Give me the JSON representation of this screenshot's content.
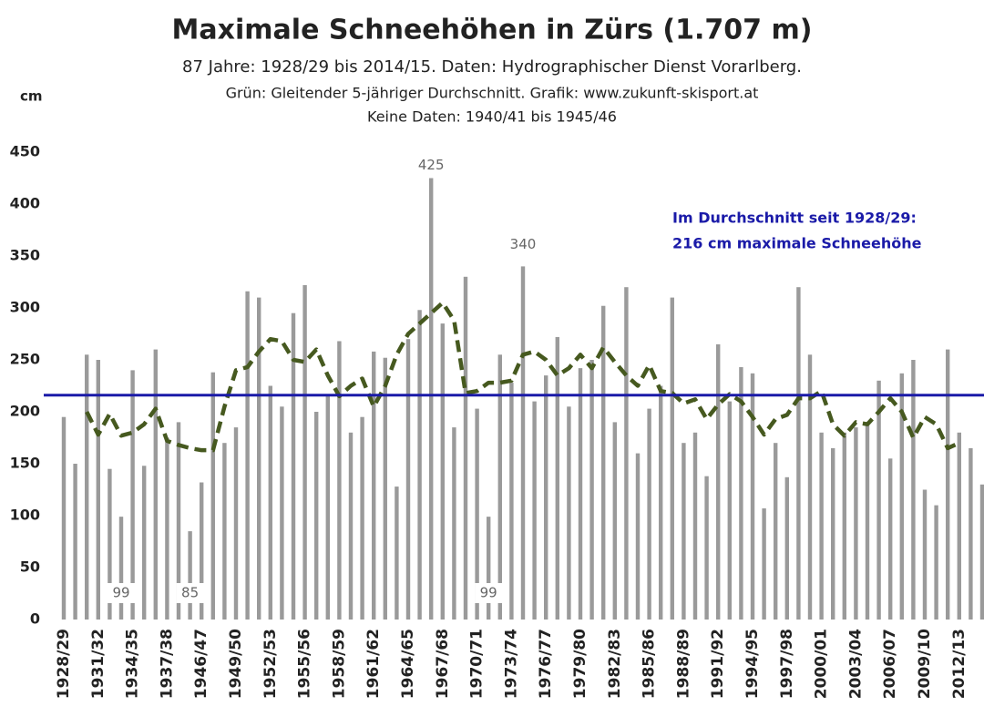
{
  "chart_data": {
    "type": "bar",
    "title": "Maximale Schneehöhen in Zürs (1.707 m)",
    "subtitles": [
      "87 Jahre: 1928/29 bis 2014/15. Daten: Hydrographischer Dienst Vorarlberg.",
      "Grün: Gleitender 5-jähriger Durchschnitt. Grafik: www.zukunft-skisport.at",
      "Keine Daten: 1940/41 bis 1945/46"
    ],
    "ylabel": "cm",
    "categories": [
      "1928/29",
      null,
      null,
      "1931/32",
      null,
      null,
      "1934/35",
      null,
      null,
      "1937/38",
      null,
      null,
      "1946/47",
      null,
      null,
      "1949/50",
      null,
      null,
      "1952/53",
      null,
      null,
      "1955/56",
      null,
      null,
      "1958/59",
      null,
      null,
      "1961/62",
      null,
      null,
      "1964/65",
      null,
      null,
      "1967/68",
      null,
      null,
      "1970/71",
      null,
      null,
      "1973/74",
      null,
      null,
      "1976/77",
      null,
      null,
      "1979/80",
      null,
      null,
      "1982/83",
      null,
      null,
      "1985/86",
      null,
      null,
      "1988/89",
      null,
      null,
      "1991/92",
      null,
      null,
      "1994/95",
      null,
      null,
      "1997/98",
      null,
      null,
      "2000/01",
      null,
      null,
      "2003/04",
      null,
      null,
      "2006/07",
      null,
      null,
      "2009/10",
      null,
      null,
      "2012/13",
      null,
      null
    ],
    "series": [
      {
        "type": "bar",
        "color": "#9a9a9a",
        "values": [
          195,
          150,
          255,
          250,
          145,
          99,
          240,
          148,
          260,
          175,
          190,
          85,
          132,
          238,
          170,
          185,
          316,
          310,
          225,
          205,
          295,
          322,
          200,
          215,
          268,
          180,
          195,
          258,
          252,
          128,
          270,
          298,
          425,
          285,
          185,
          330,
          203,
          99,
          255,
          228,
          340,
          210,
          235,
          272,
          205,
          242,
          250,
          302,
          190,
          320,
          160,
          203,
          225,
          310,
          170,
          180,
          138,
          265,
          210,
          243,
          237,
          107,
          170,
          137,
          320,
          255,
          180,
          165,
          180,
          185,
          190,
          230,
          155,
          237,
          250,
          125,
          110,
          260,
          180,
          165,
          130
        ],
        "value_labels": [
          null,
          null,
          null,
          null,
          null,
          "99",
          null,
          null,
          null,
          null,
          null,
          "85",
          null,
          null,
          null,
          null,
          null,
          null,
          null,
          null,
          null,
          null,
          null,
          null,
          null,
          null,
          null,
          null,
          null,
          null,
          null,
          null,
          "425",
          null,
          null,
          null,
          null,
          "99",
          null,
          null,
          "340",
          null,
          null,
          null,
          null,
          null,
          null,
          null,
          null,
          null,
          null,
          null,
          null,
          null,
          null,
          null,
          null,
          null,
          null,
          null,
          null,
          null,
          null,
          null,
          null,
          null,
          null,
          null,
          null,
          null,
          null,
          null,
          null,
          null,
          null,
          null,
          null,
          null,
          null,
          null,
          null
        ]
      },
      {
        "type": "line",
        "color": "#46591f",
        "dashed": true,
        "values": [
          null,
          null,
          200,
          178,
          198,
          177,
          180,
          188,
          203,
          172,
          168,
          165,
          163,
          163,
          205,
          240,
          243,
          258,
          270,
          268,
          250,
          248,
          260,
          235,
          215,
          225,
          232,
          205,
          225,
          255,
          275,
          285,
          295,
          305,
          288,
          218,
          220,
          228,
          228,
          230,
          255,
          258,
          250,
          235,
          242,
          255,
          242,
          262,
          248,
          235,
          225,
          245,
          220,
          218,
          208,
          212,
          193,
          207,
          217,
          210,
          195,
          178,
          193,
          197,
          213,
          213,
          220,
          188,
          177,
          190,
          188,
          200,
          213,
          200,
          175,
          195,
          188,
          165,
          170,
          null,
          null
        ]
      }
    ],
    "average": {
      "value": 216,
      "color": "#1a1aa8",
      "label": [
        "Im Durchschnitt seit 1928/29:",
        "216 cm maximale Schneehöhe"
      ]
    },
    "ylim": [
      0,
      450
    ],
    "yticks": [
      0,
      50,
      100,
      150,
      200,
      250,
      300,
      350,
      400,
      450
    ],
    "grid": false
  }
}
